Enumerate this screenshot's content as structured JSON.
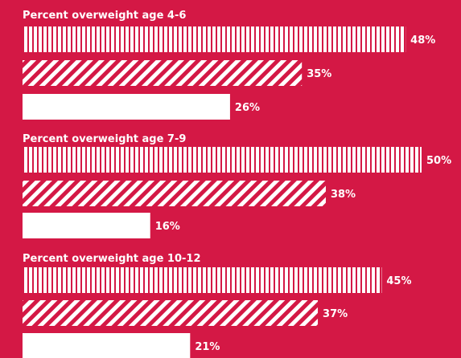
{
  "colors": {
    "background": "#d41845",
    "bar": "#ffffff"
  },
  "chart_data": {
    "type": "bar",
    "orientation": "horizontal",
    "grid": false,
    "legend": "none",
    "xlim": [
      0,
      50
    ],
    "series_patterns": [
      "vertical-stripes",
      "diagonal-stripes",
      "solid"
    ],
    "groups": [
      {
        "title": "Percent overweight age 4-6",
        "values": [
          48,
          35,
          26
        ],
        "labels": [
          "48%",
          "35%",
          "26%"
        ]
      },
      {
        "title": "Percent overweight age 7-9",
        "values": [
          50,
          38,
          16
        ],
        "labels": [
          "50%",
          "38%",
          "16%"
        ]
      },
      {
        "title": "Percent overweight age 10-12",
        "values": [
          45,
          37,
          21
        ],
        "labels": [
          "45%",
          "37%",
          "21%"
        ]
      }
    ]
  }
}
